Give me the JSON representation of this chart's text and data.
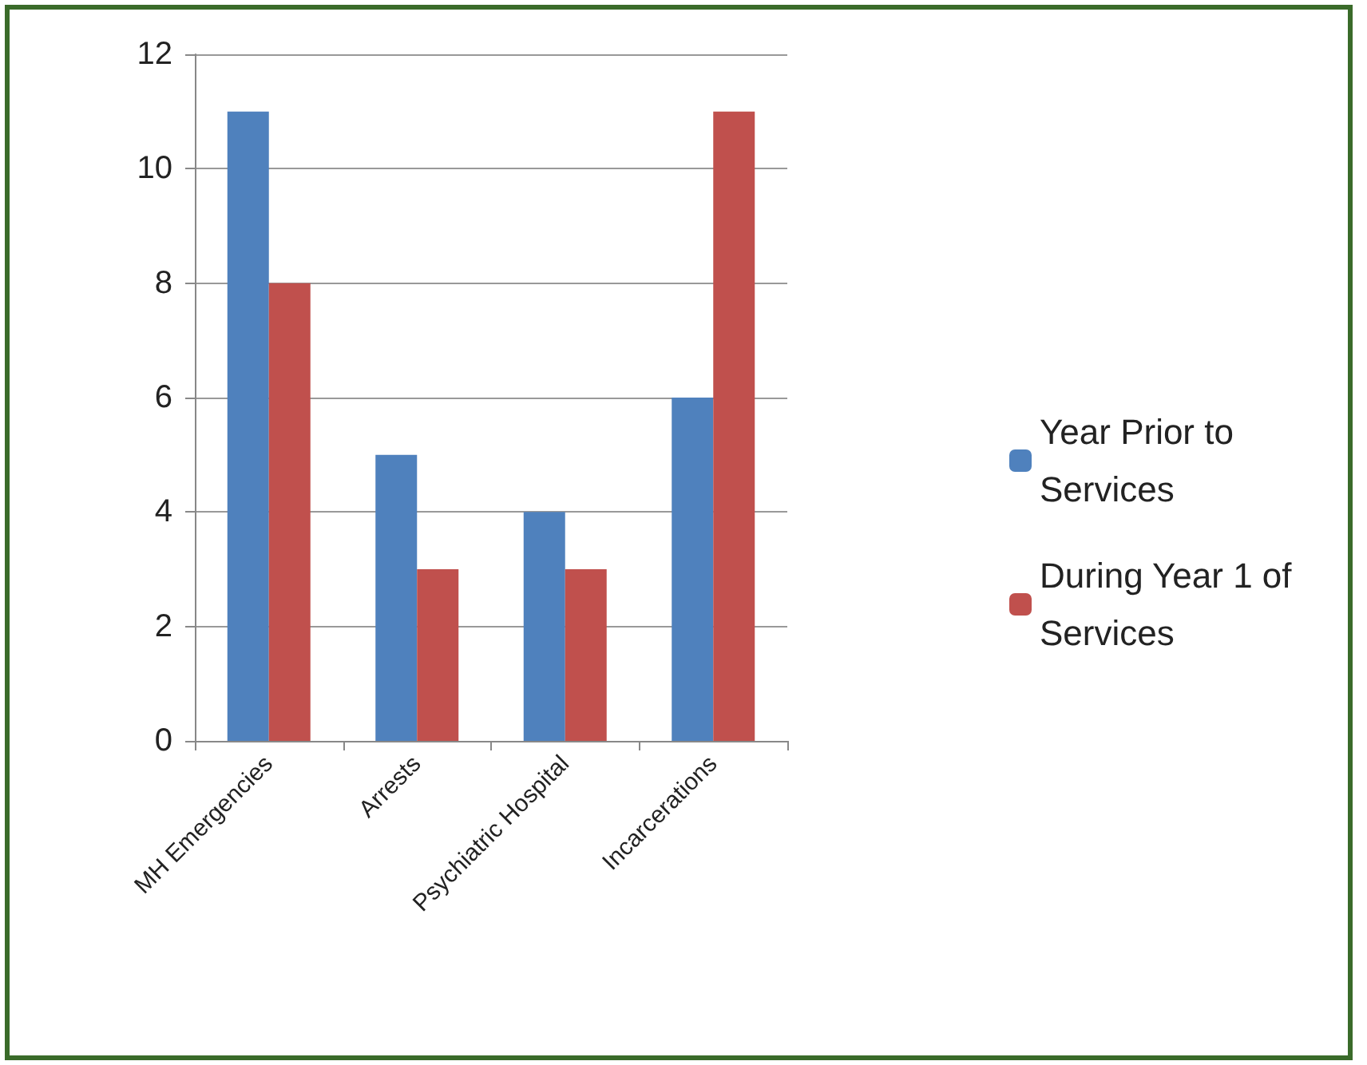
{
  "chart_data": {
    "type": "bar",
    "categories": [
      "MH Emergencies",
      "Arrests",
      "Psychiatric Hospital",
      "Incarcerations"
    ],
    "series": [
      {
        "name": "Year Prior to Services",
        "color": "#4f81bd",
        "values": [
          11,
          5,
          4,
          6
        ]
      },
      {
        "name": "During Year 1 of Services",
        "color": "#c0504d",
        "values": [
          8,
          3,
          3,
          11
        ]
      }
    ],
    "ylim": [
      0,
      12
    ],
    "yticks": [
      0,
      2,
      4,
      6,
      8,
      10,
      12
    ],
    "grid": "y",
    "legend": "right"
  }
}
